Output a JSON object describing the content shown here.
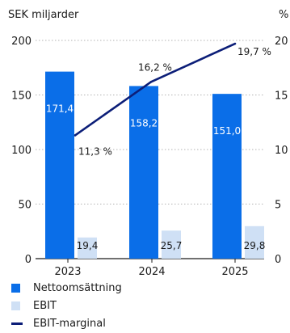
{
  "chart_data": {
    "type": "bar",
    "categories": [
      "2023",
      "2024",
      "2025"
    ],
    "left_axis": {
      "label": "SEK miljarder",
      "min": 0,
      "max": 200,
      "ticks": [
        "0",
        "50",
        "100",
        "150",
        "200"
      ]
    },
    "right_axis": {
      "label": "%",
      "min": 0,
      "max": 20,
      "ticks": [
        "0",
        "5",
        "10",
        "15",
        "20"
      ]
    },
    "series": [
      {
        "name": "Nettoomsättning",
        "type": "bar",
        "axis": "left",
        "values": [
          171.4,
          158.2,
          151.0
        ],
        "labels": [
          "171,4",
          "158,2",
          "151,0"
        ],
        "color": "#0a6ee8"
      },
      {
        "name": "EBIT",
        "type": "bar",
        "axis": "left",
        "values": [
          19.4,
          25.7,
          29.8
        ],
        "labels": [
          "19,4",
          "25,7",
          "29,8"
        ],
        "color": "#cfe0f5"
      },
      {
        "name": "EBIT-marginal",
        "type": "line",
        "axis": "right",
        "values": [
          11.3,
          16.2,
          19.7
        ],
        "labels": [
          "11,3 %",
          "16,2 %",
          "19,7 %"
        ],
        "color": "#0c1e78"
      }
    ],
    "grid": true
  }
}
